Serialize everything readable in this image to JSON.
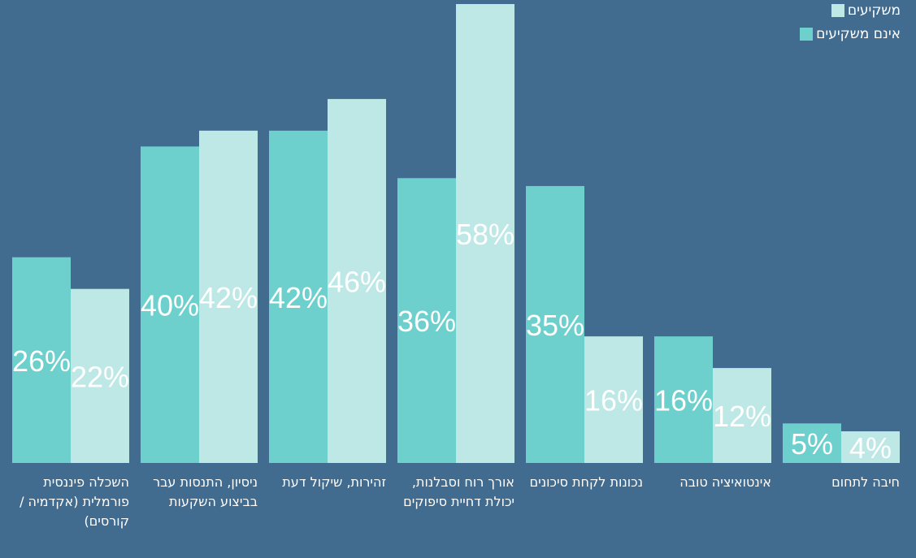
{
  "chart_data": {
    "type": "bar",
    "categories": [
      "השכלה פיננסית פורמלית (אקדמיה / קורסים)",
      "ניסיון, התנסות עבר בביצוע השקעות",
      "זהירות, שיקול דעת",
      "אורך רוח וסבלנות, יכולת דחיית סיפוקים",
      "נכונות לקחת סיכונים",
      "אינטואיציה טובה",
      "חיבה לתחום"
    ],
    "series": [
      {
        "name": "משקיעים",
        "color": "#bde8e6",
        "values": [
          22,
          42,
          46,
          58,
          16,
          12,
          4
        ],
        "value_labels": [
          "22%",
          "42%",
          "46%",
          "58%",
          "16%",
          "12%",
          "4%"
        ]
      },
      {
        "name": "אינם משקיעים",
        "color": "#6dd0cc",
        "values": [
          26,
          40,
          42,
          36,
          35,
          16,
          5
        ],
        "value_labels": [
          "26%",
          "40%",
          "42%",
          "36%",
          "35%",
          "16%",
          "5%"
        ]
      }
    ],
    "legend": "top-right"
  }
}
